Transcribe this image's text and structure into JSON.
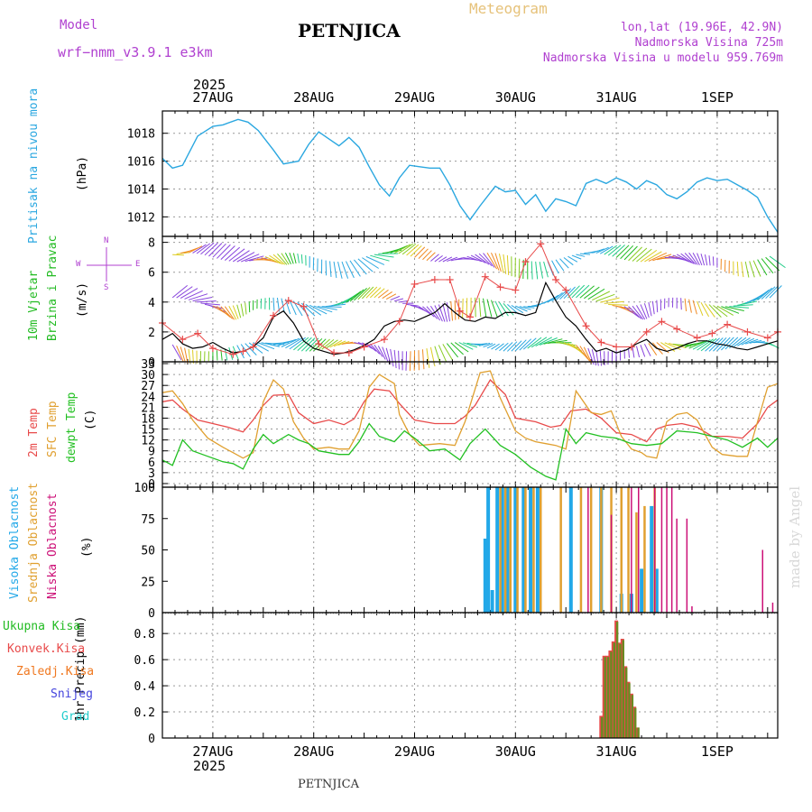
{
  "header": {
    "model_label": "Model",
    "model_name": "wrf−nmm_v3.9.1  e3km",
    "station": "PETNJICA",
    "meteogram": "Meteogram",
    "lonlat": "lon,lat (19.96E, 42.9N)",
    "altitude": "Nadmorska Visina 725m",
    "model_altitude": "Nadmorska Visina u modelu 959.769m",
    "footer_station": "PETNJICA",
    "watermark": "made by Angel",
    "year": "2025"
  },
  "colors": {
    "pressure": "#2aa7e0",
    "wind_green": "#22bb22",
    "temp2m": "#e84a4a",
    "sfc": "#e0a030",
    "dewpt": "#22c022",
    "high_cloud": "#22a8e8",
    "mid_cloud": "#e0a030",
    "low_cloud": "#cc1077",
    "magenta": "#b040d0",
    "orange": "#f07820"
  },
  "x_axis": {
    "dates": [
      "27AUG",
      "28AUG",
      "29AUG",
      "30AUG",
      "31AUG",
      "1SEP"
    ],
    "day_positions": [
      0.5,
      1.5,
      2.5,
      3.5,
      4.5,
      5.5
    ],
    "range": [
      0,
      6.1
    ]
  },
  "panels": {
    "pressure": {
      "label": "Pritisak na nivou mora",
      "unit": "(hPa)",
      "ticks": [
        "1018",
        "1016",
        "1014",
        "1012"
      ]
    },
    "wind": {
      "label_a": "10m Vjetar",
      "label_b": "Brzina i Pravac",
      "unit": "(m/s)",
      "ticks": [
        "8",
        "6",
        "4",
        "2",
        "0"
      ],
      "compass_n": "N",
      "compass_s": "S",
      "compass_w": "W",
      "compass_e": "E"
    },
    "temp": {
      "label_a": "2m Temp",
      "label_b": "SFC Temp",
      "label_c": "dewpt Temp",
      "unit": "(C)",
      "ticks": [
        "33",
        "30",
        "27",
        "24",
        "21",
        "18",
        "15",
        "12",
        "9",
        "6",
        "3",
        "0"
      ]
    },
    "cloud": {
      "label_a": "Visoka Oblacnost",
      "label_b": "Srednja Oblacnost",
      "label_c": "Niska Oblacnost",
      "unit": "(%)",
      "ticks": [
        "100",
        "75",
        "50",
        "25",
        "0"
      ]
    },
    "precip": {
      "unit": "1hr Precip (mm)",
      "ticks": [
        "0.8",
        "0.6",
        "0.4",
        "0.2",
        "0"
      ],
      "legend": [
        "Ukupna Kisa",
        "Konvek.Kisa",
        "Zaledj.Kisa",
        "Snijeg",
        "Grad"
      ]
    }
  },
  "chart_data": [
    {
      "type": "line",
      "title": "Pritisak na nivou mora",
      "ylabel": "(hPa)",
      "ylim": [
        1010.6,
        1019.6
      ],
      "x": [
        0.0,
        0.1,
        0.2,
        0.35,
        0.5,
        0.6,
        0.75,
        0.85,
        0.95,
        1.1,
        1.2,
        1.35,
        1.45,
        1.55,
        1.65,
        1.75,
        1.85,
        1.95,
        2.05,
        2.15,
        2.25,
        2.35,
        2.45,
        2.55,
        2.65,
        2.75,
        2.85,
        2.95,
        3.05,
        3.15,
        3.3,
        3.4,
        3.5,
        3.6,
        3.7,
        3.8,
        3.9,
        4.0,
        4.1,
        4.2,
        4.3,
        4.4,
        4.5,
        4.6,
        4.7,
        4.8,
        4.9,
        5.0,
        5.1,
        5.2,
        5.3,
        5.4,
        5.5,
        5.6,
        5.7,
        5.8,
        5.9,
        6.0,
        6.1
      ],
      "y": [
        1016.2,
        1015.5,
        1015.7,
        1017.8,
        1018.5,
        1018.6,
        1019.0,
        1018.8,
        1018.2,
        1016.8,
        1015.8,
        1016.0,
        1017.2,
        1018.1,
        1017.6,
        1017.1,
        1017.7,
        1017.0,
        1015.6,
        1014.3,
        1013.5,
        1014.8,
        1015.7,
        1015.6,
        1015.5,
        1015.5,
        1014.3,
        1012.8,
        1011.8,
        1012.8,
        1014.2,
        1013.8,
        1013.9,
        1012.9,
        1013.6,
        1012.4,
        1013.3,
        1013.1,
        1012.8,
        1014.4,
        1014.7,
        1014.4,
        1014.8,
        1014.5,
        1014.0,
        1014.6,
        1014.3,
        1013.6,
        1013.3,
        1013.8,
        1014.5,
        1014.8,
        1014.6,
        1014.7,
        1014.3,
        1013.9,
        1013.4,
        1012.0,
        1010.9
      ]
    },
    {
      "type": "line",
      "title": "10m Vjetar Brzina i Pravac",
      "ylabel": "(m/s)",
      "ylim": [
        0,
        8.4
      ],
      "series": [
        {
          "name": "speed",
          "x": [
            0.0,
            0.1,
            0.2,
            0.3,
            0.4,
            0.5,
            0.6,
            0.7,
            0.8,
            0.9,
            1.0,
            1.1,
            1.2,
            1.3,
            1.4,
            1.5,
            1.6,
            1.7,
            1.8,
            1.9,
            2.0,
            2.1,
            2.2,
            2.3,
            2.4,
            2.5,
            2.6,
            2.7,
            2.8,
            2.9,
            3.0,
            3.1,
            3.2,
            3.3,
            3.4,
            3.5,
            3.6,
            3.7,
            3.8,
            3.9,
            4.0,
            4.1,
            4.2,
            4.3,
            4.4,
            4.5,
            4.6,
            4.7,
            4.8,
            4.9,
            5.0,
            5.1,
            5.2,
            5.3,
            5.4,
            5.5,
            5.6,
            5.7,
            5.8,
            5.9,
            6.0,
            6.1
          ],
          "y": [
            1.5,
            1.9,
            1.2,
            0.9,
            1.0,
            1.3,
            0.9,
            0.6,
            0.7,
            1.0,
            1.6,
            3.0,
            3.4,
            2.6,
            1.4,
            0.9,
            0.7,
            0.5,
            0.6,
            0.8,
            1.1,
            1.5,
            2.4,
            2.7,
            2.8,
            2.7,
            3.0,
            3.3,
            3.9,
            3.3,
            2.8,
            2.7,
            3.0,
            2.9,
            3.3,
            3.3,
            3.1,
            3.3,
            5.3,
            4.1,
            3.0,
            2.4,
            1.5,
            0.7,
            0.9,
            0.6,
            0.8,
            1.2,
            1.5,
            0.9,
            0.7,
            0.9,
            1.2,
            1.4,
            1.4,
            1.2,
            1.1,
            0.9,
            0.8,
            1.0,
            1.2,
            1.4
          ]
        },
        {
          "name": "gust",
          "x": [
            0.0,
            0.2,
            0.35,
            0.5,
            0.7,
            0.8,
            0.9,
            1.1,
            1.25,
            1.4,
            1.55,
            1.7,
            1.85,
            2.0,
            2.2,
            2.35,
            2.5,
            2.7,
            2.85,
            2.95,
            3.05,
            3.2,
            3.35,
            3.5,
            3.6,
            3.75,
            3.9,
            4.0,
            4.2,
            4.35,
            4.5,
            4.65,
            4.8,
            4.95,
            5.1,
            5.3,
            5.45,
            5.6,
            5.8,
            6.0,
            6.1
          ],
          "y": [
            2.6,
            1.5,
            1.9,
            0.9,
            0.5,
            0.7,
            1.0,
            3.1,
            4.1,
            3.7,
            1.2,
            0.6,
            0.6,
            1.0,
            1.5,
            2.7,
            5.2,
            5.5,
            5.5,
            3.4,
            3.0,
            5.7,
            5.0,
            4.8,
            6.7,
            7.9,
            5.5,
            4.8,
            2.4,
            1.3,
            1.0,
            1.0,
            2.0,
            2.7,
            2.2,
            1.6,
            1.9,
            2.5,
            2.0,
            1.6,
            2.0
          ]
        }
      ]
    },
    {
      "type": "line",
      "title": "Temperature",
      "ylabel": "(C)",
      "ylim": [
        -1,
        33.5
      ],
      "series": [
        {
          "name": "2m Temp",
          "x": [
            0.0,
            0.1,
            0.2,
            0.35,
            0.5,
            0.65,
            0.8,
            0.9,
            1.0,
            1.1,
            1.25,
            1.35,
            1.5,
            1.65,
            1.8,
            1.9,
            2.0,
            2.1,
            2.25,
            2.35,
            2.5,
            2.7,
            2.9,
            3.0,
            3.1,
            3.25,
            3.4,
            3.5,
            3.7,
            3.85,
            3.95,
            4.05,
            4.2,
            4.35,
            4.5,
            4.65,
            4.8,
            4.9,
            5.0,
            5.15,
            5.3,
            5.45,
            5.6,
            5.75,
            5.9,
            6.0,
            6.1
          ],
          "y": [
            22.5,
            23.0,
            20.5,
            17.5,
            16.5,
            15.5,
            14.2,
            17.5,
            21.5,
            24.3,
            24.5,
            19.5,
            16.5,
            17.5,
            16.2,
            17.8,
            22.5,
            26.0,
            25.5,
            22.0,
            17.5,
            16.5,
            16.5,
            18.5,
            21.5,
            28.5,
            24.5,
            18.0,
            17.0,
            15.5,
            16.0,
            20.0,
            20.5,
            18.0,
            14.0,
            13.5,
            11.5,
            15.0,
            16.0,
            16.5,
            15.5,
            13.0,
            13.0,
            12.5,
            16.5,
            21.0,
            23.0
          ]
        },
        {
          "name": "SFC Temp",
          "x": [
            0.0,
            0.1,
            0.2,
            0.3,
            0.45,
            0.6,
            0.7,
            0.8,
            0.9,
            1.0,
            1.1,
            1.2,
            1.3,
            1.4,
            1.5,
            1.65,
            1.75,
            1.85,
            1.95,
            2.05,
            2.15,
            2.3,
            2.35,
            2.45,
            2.55,
            2.75,
            2.9,
            3.0,
            3.15,
            3.25,
            3.35,
            3.5,
            3.6,
            3.7,
            3.8,
            3.9,
            4.0,
            4.05,
            4.1,
            4.25,
            4.35,
            4.45,
            4.55,
            4.65,
            4.75,
            4.8,
            4.9,
            5.0,
            5.1,
            5.2,
            5.3,
            5.45,
            5.55,
            5.7,
            5.8,
            5.9,
            6.0,
            6.1
          ],
          "y": [
            25.0,
            25.5,
            22.0,
            17.5,
            12.5,
            10.0,
            8.5,
            7.0,
            8.5,
            22.5,
            28.5,
            26.0,
            17.0,
            12.5,
            9.5,
            10.0,
            9.5,
            9.5,
            14.5,
            26.5,
            30.0,
            27.5,
            19.0,
            13.5,
            10.5,
            11.0,
            10.5,
            17.0,
            30.5,
            31.0,
            23.5,
            14.5,
            12.5,
            11.5,
            11.0,
            10.5,
            9.5,
            17.5,
            25.5,
            19.5,
            19.0,
            20.0,
            13.0,
            9.5,
            8.5,
            7.5,
            7.0,
            17.0,
            19.0,
            19.5,
            17.5,
            10.0,
            8.0,
            7.5,
            7.5,
            17.0,
            26.5,
            27.5
          ]
        },
        {
          "name": "dewpt Temp",
          "x": [
            0.0,
            0.1,
            0.2,
            0.3,
            0.45,
            0.6,
            0.7,
            0.8,
            0.9,
            1.0,
            1.1,
            1.25,
            1.35,
            1.45,
            1.55,
            1.65,
            1.75,
            1.85,
            1.95,
            2.05,
            2.15,
            2.3,
            2.4,
            2.5,
            2.65,
            2.8,
            2.95,
            3.05,
            3.2,
            3.35,
            3.5,
            3.65,
            3.8,
            3.9,
            4.0,
            4.1,
            4.2,
            4.35,
            4.5,
            4.65,
            4.8,
            4.95,
            5.1,
            5.3,
            5.45,
            5.6,
            5.75,
            5.9,
            6.0,
            6.1
          ],
          "y": [
            6.5,
            5.0,
            12.0,
            9.0,
            7.5,
            6.0,
            5.5,
            4.0,
            9.5,
            13.5,
            11.0,
            13.5,
            12.0,
            11.0,
            9.0,
            8.5,
            8.0,
            8.0,
            11.5,
            16.5,
            13.0,
            11.5,
            14.5,
            12.5,
            9.0,
            9.5,
            6.5,
            11.0,
            15.0,
            10.5,
            8.0,
            4.5,
            2.0,
            1.0,
            15.0,
            11.0,
            14.0,
            13.0,
            12.5,
            11.0,
            10.5,
            11.0,
            14.5,
            14.0,
            13.0,
            12.0,
            10.0,
            12.5,
            10.0,
            12.5
          ]
        }
      ]
    },
    {
      "type": "bar",
      "title": "Oblacnost",
      "ylabel": "(%)",
      "ylim": [
        0,
        100
      ],
      "series": [
        {
          "name": "Visoka Oblacnost",
          "x": [
            3.2,
            3.23,
            3.27,
            3.32,
            3.37,
            3.42,
            3.5,
            3.58,
            3.65,
            3.72,
            4.05,
            4.35,
            4.55,
            4.65,
            4.75,
            4.85,
            4.9
          ],
          "values": [
            59,
            100,
            18,
            100,
            100,
            100,
            100,
            100,
            100,
            100,
            100,
            100,
            15,
            15,
            35,
            85,
            35
          ]
        },
        {
          "name": "Srednja Oblacnost",
          "x": [
            3.35,
            3.4,
            3.45,
            3.52,
            3.6,
            3.68,
            3.75,
            3.95,
            4.15,
            4.25,
            4.35,
            4.45,
            4.55,
            4.62,
            4.7,
            4.78,
            4.88
          ],
          "values": [
            100,
            100,
            100,
            100,
            100,
            100,
            100,
            100,
            100,
            100,
            100,
            100,
            100,
            100,
            80,
            85,
            100
          ]
        },
        {
          "name": "Niska Oblacnost",
          "x": [
            4.22,
            4.45,
            4.65,
            4.72,
            4.88,
            4.95,
            5.0,
            5.05,
            5.1,
            5.2,
            5.25,
            5.95,
            6.05
          ],
          "values": [
            100,
            78,
            100,
            100,
            100,
            100,
            100,
            100,
            75,
            75,
            5,
            50,
            8
          ]
        }
      ]
    },
    {
      "type": "bar",
      "title": "1hr Precip",
      "ylabel": "1hr Precip (mm)",
      "ylim": [
        0,
        0.96
      ],
      "series": [
        {
          "name": "Ukupna Kisa",
          "x": [
            4.35,
            4.38,
            4.41,
            4.44,
            4.47,
            4.5,
            4.53,
            4.56,
            4.59,
            4.62,
            4.65,
            4.68,
            4.71
          ],
          "values": [
            0.17,
            0.63,
            0.63,
            0.67,
            0.74,
            0.9,
            0.73,
            0.76,
            0.55,
            0.43,
            0.34,
            0.24,
            0.08
          ]
        },
        {
          "name": "Konvek.Kisa",
          "x": [
            4.35,
            4.38,
            4.41,
            4.44,
            4.47,
            4.5,
            4.53,
            4.56,
            4.59,
            4.62,
            4.65,
            4.68,
            4.71
          ],
          "values": [
            0.16,
            0.62,
            0.62,
            0.66,
            0.73,
            0.89,
            0.72,
            0.75,
            0.54,
            0.42,
            0.33,
            0.23,
            0.08
          ]
        }
      ]
    }
  ]
}
